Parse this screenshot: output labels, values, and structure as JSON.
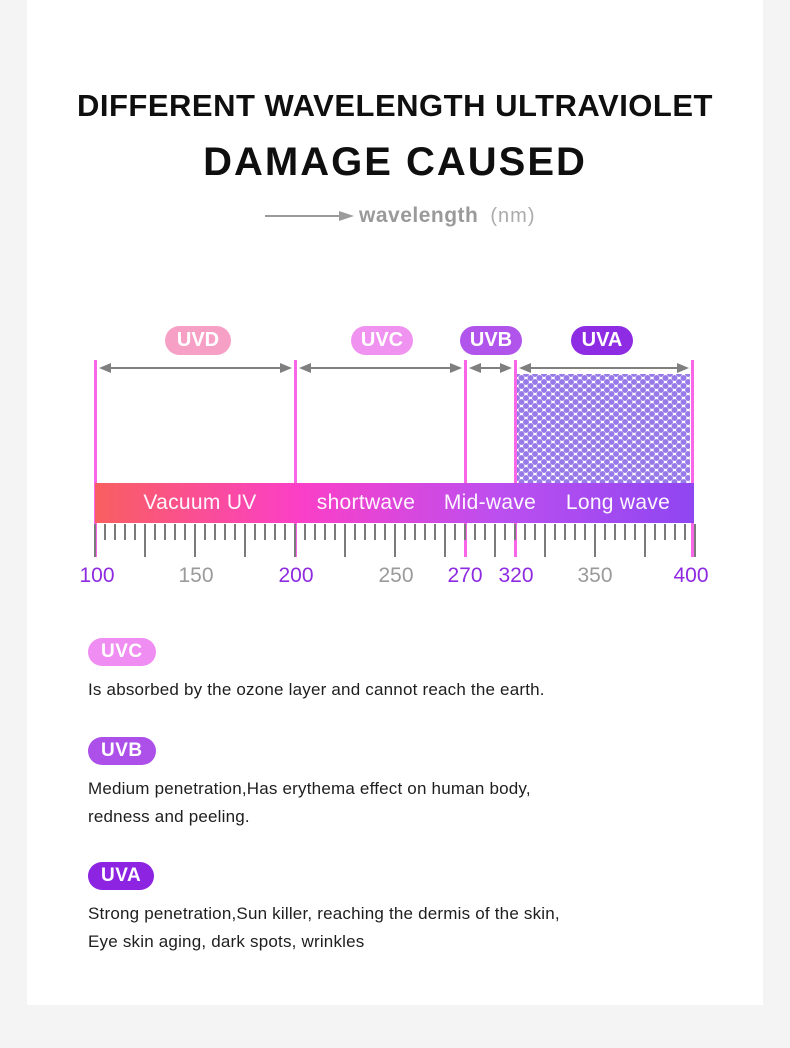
{
  "page": {
    "background_color": "#f4f4f4",
    "panel_color": "#ffffff",
    "title_line1": "DIFFERENT WAVELENGTH ULTRAVIOLET",
    "title_line2": "DAMAGE CAUSED"
  },
  "axis": {
    "label": "wavelength",
    "unit": "(nm)"
  },
  "diagram": {
    "boundary_line_color": "#f966e8",
    "arrow_color": "#7f7f7f",
    "dot_pattern_color": "#9779e8",
    "bands": [
      {
        "label": "UVD",
        "color": "#f7a0c6",
        "range_nm": [
          100,
          200
        ]
      },
      {
        "label": "UVC",
        "color": "#f092f0",
        "range_nm": [
          200,
          270
        ]
      },
      {
        "label": "UVB",
        "color": "#b054eb",
        "range_nm": [
          270,
          320
        ]
      },
      {
        "label": "UVA",
        "color": "#8e2ce4",
        "range_nm": [
          320,
          400
        ]
      }
    ],
    "bar": {
      "gradient": [
        "#f95f60",
        "#fb3fc7",
        "#bb4ff0",
        "#8f46f1"
      ],
      "segments": [
        "Vacuum UV",
        "shortwave",
        "Mid-wave",
        "Long wave"
      ]
    },
    "scale": {
      "labels": [
        {
          "text": "100",
          "color": "#8e2be0"
        },
        {
          "text": "150",
          "color": "#9a9a9a"
        },
        {
          "text": "200",
          "color": "#8e2be0"
        },
        {
          "text": "250",
          "color": "#9a9a9a"
        },
        {
          "text": "270",
          "color": "#8e2be0"
        },
        {
          "text": "320",
          "color": "#8e2be0"
        },
        {
          "text": "350",
          "color": "#9a9a9a"
        },
        {
          "text": "400",
          "color": "#8e2be0"
        }
      ]
    }
  },
  "sections": [
    {
      "badge": "UVC",
      "badge_color": "#ef8df2",
      "line1": "Is absorbed by the ozone layer and cannot reach the earth.",
      "line2": ""
    },
    {
      "badge": "UVB",
      "badge_color": "#ad50e9",
      "line1": "Medium penetration,Has erythema effect on human body,",
      "line2": "redness and peeling."
    },
    {
      "badge": "UVA",
      "badge_color": "#8c24e1",
      "line1": "Strong penetration,Sun killer, reaching the dermis of the skin,",
      "line2": "Eye skin aging, dark spots, wrinkles"
    }
  ]
}
